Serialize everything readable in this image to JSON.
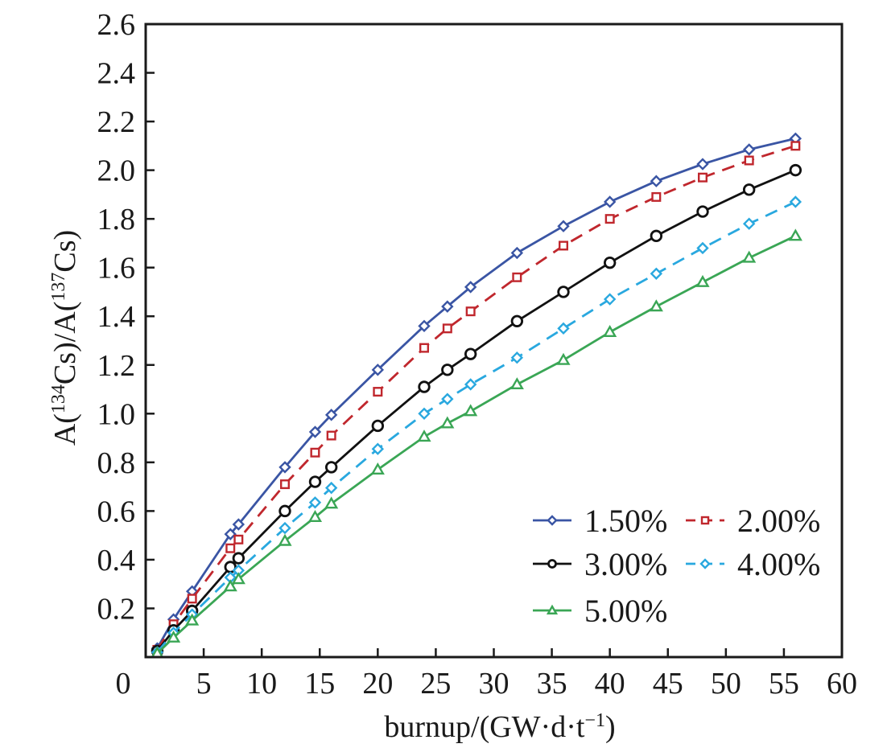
{
  "chart_data": {
    "type": "line",
    "title": "",
    "xlabel": "burnup/(GW·d·t⁻¹)",
    "ylabel": "A(¹³⁴Cs)/A(¹³⁷Cs)",
    "xlim": [
      0,
      60
    ],
    "ylim": [
      0,
      2.6
    ],
    "x_ticks": [
      "0",
      "5",
      "10",
      "15",
      "20",
      "25",
      "30",
      "35",
      "40",
      "45",
      "50",
      "55",
      "60"
    ],
    "y_ticks": [
      "0.2",
      "0.4",
      "0.6",
      "0.8",
      "1.0",
      "1.2",
      "1.4",
      "1.6",
      "1.8",
      "2.0",
      "2.2",
      "2.4",
      "2.6"
    ],
    "grid": false,
    "legend_position": "bottom-right",
    "x": [
      1,
      2.4,
      4,
      7.3,
      8,
      12,
      14.6,
      16,
      20,
      24,
      26,
      28,
      32,
      36,
      40,
      44,
      48,
      52,
      56
    ],
    "series": [
      {
        "name": "1.50%",
        "color": "#3a55a4",
        "dash": "solid",
        "marker": "diamond",
        "values": [
          0.036,
          0.155,
          0.27,
          0.505,
          0.545,
          0.78,
          0.925,
          0.995,
          1.18,
          1.36,
          1.44,
          1.52,
          1.66,
          1.77,
          1.87,
          1.955,
          2.025,
          2.085,
          2.13
        ]
      },
      {
        "name": "2.00%",
        "color": "#c0272d",
        "dash": "dashed",
        "marker": "square",
        "values": [
          0.03,
          0.135,
          0.24,
          0.447,
          0.483,
          0.71,
          0.84,
          0.91,
          1.09,
          1.27,
          1.35,
          1.42,
          1.56,
          1.69,
          1.8,
          1.89,
          1.97,
          2.04,
          2.1
        ]
      },
      {
        "name": "3.00%",
        "color": "#111111",
        "dash": "solid",
        "marker": "circle",
        "values": [
          0.025,
          0.11,
          0.19,
          0.37,
          0.406,
          0.6,
          0.72,
          0.78,
          0.95,
          1.11,
          1.18,
          1.245,
          1.38,
          1.5,
          1.62,
          1.73,
          1.83,
          1.92,
          2.0
        ]
      },
      {
        "name": "4.00%",
        "color": "#29a8df",
        "dash": "dashed",
        "marker": "diamond",
        "values": [
          0.02,
          0.1,
          0.175,
          0.327,
          0.356,
          0.53,
          0.635,
          0.695,
          0.855,
          1.0,
          1.06,
          1.12,
          1.23,
          1.35,
          1.47,
          1.575,
          1.68,
          1.78,
          1.87
        ]
      },
      {
        "name": "5.00%",
        "color": "#3aa655",
        "dash": "solid",
        "marker": "triangle",
        "values": [
          0.015,
          0.08,
          0.15,
          0.29,
          0.32,
          0.477,
          0.575,
          0.63,
          0.77,
          0.905,
          0.96,
          1.01,
          1.12,
          1.22,
          1.335,
          1.44,
          1.54,
          1.64,
          1.73
        ]
      }
    ]
  }
}
